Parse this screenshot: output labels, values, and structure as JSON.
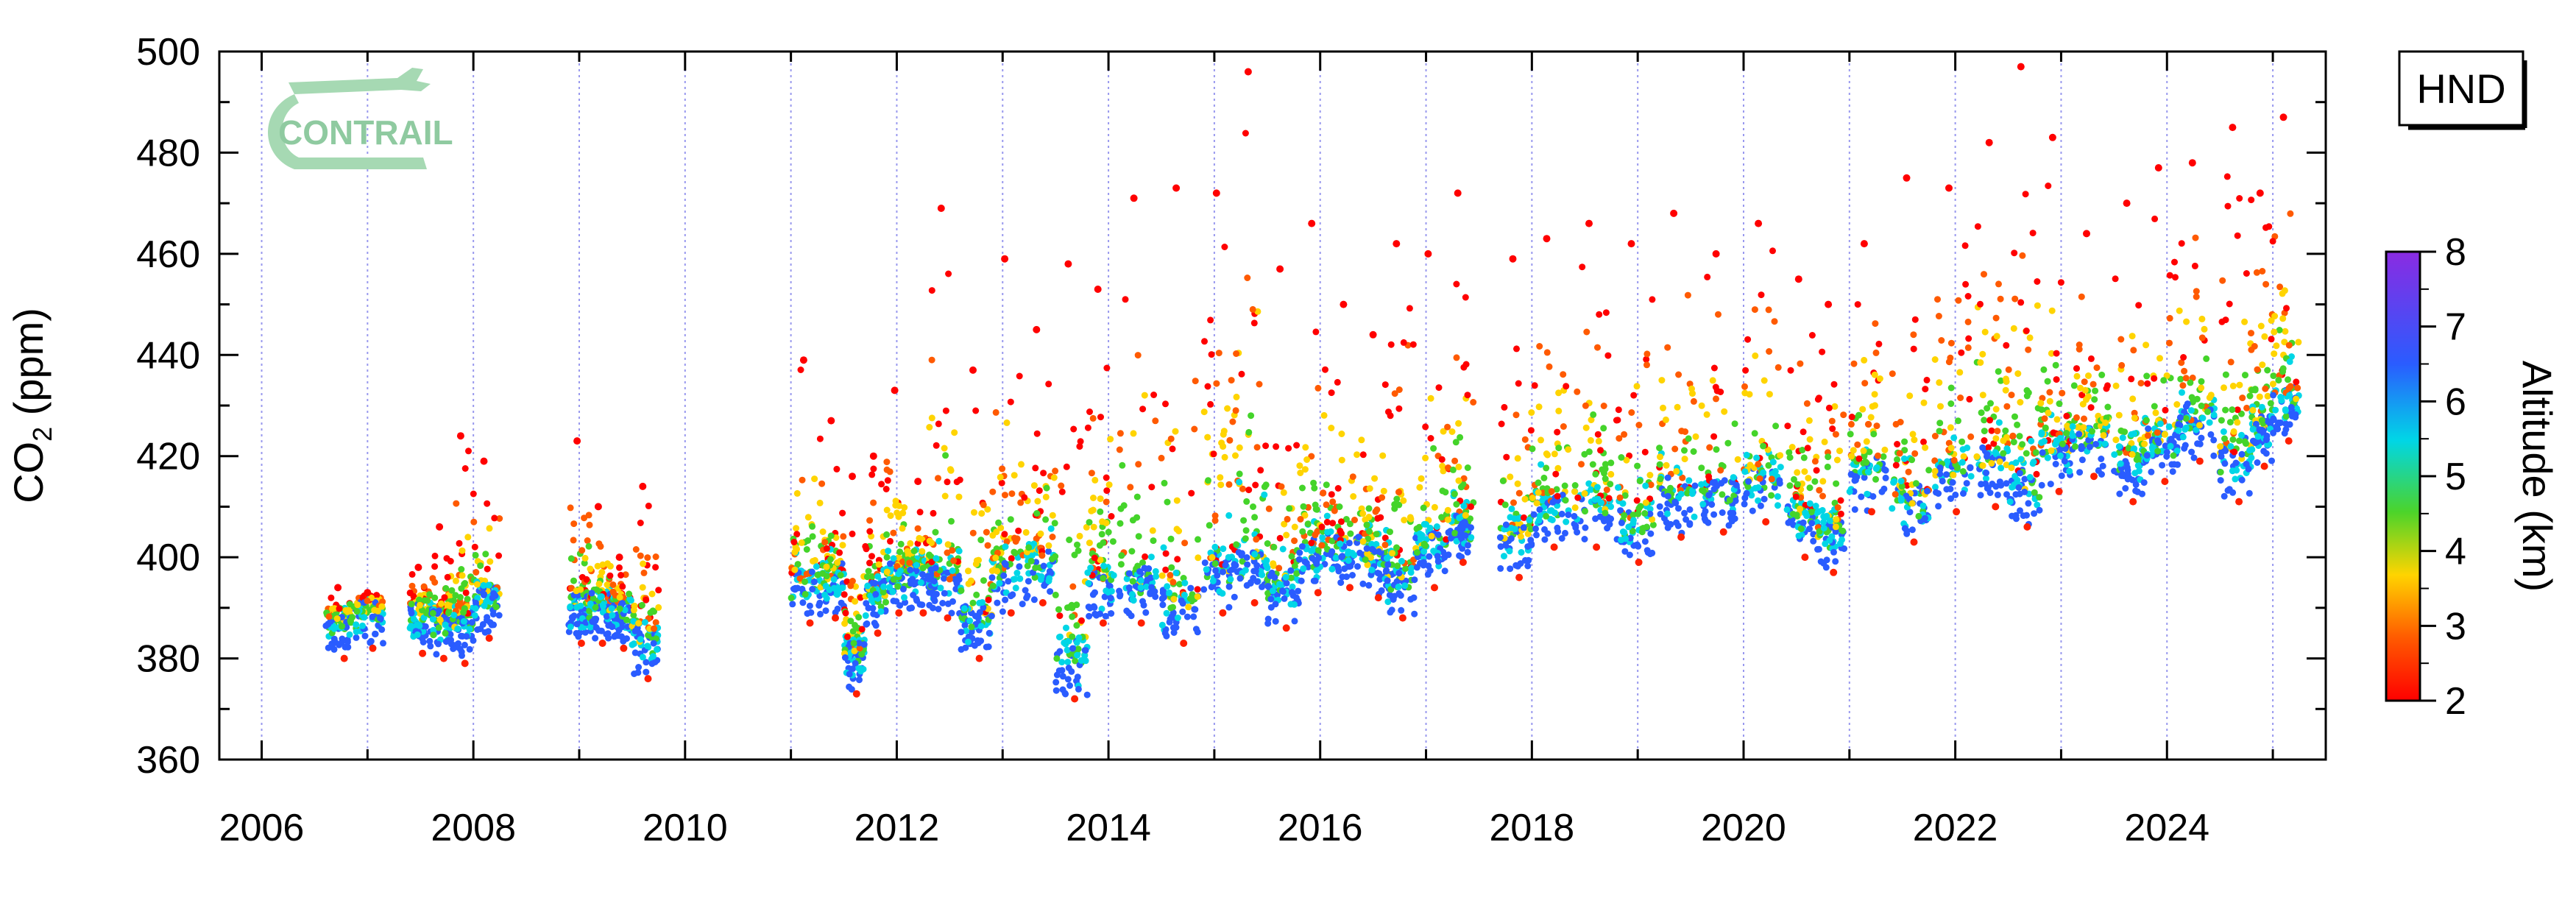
{
  "station_badge": "HND",
  "logo": {
    "text": "CONTRAIL",
    "color": "#a6d9b3"
  },
  "colorbar": {
    "label": "Altitude (km)",
    "ticks": [
      "8",
      "7",
      "6",
      "5",
      "4",
      "3",
      "2"
    ],
    "range": [
      2,
      8
    ]
  },
  "chart_data": {
    "type": "scatter",
    "ylabel_main": "CO",
    "ylabel_sub": "2",
    "ylabel_unit": " (ppm)",
    "ylim": [
      360,
      500
    ],
    "xlim": [
      2005.6,
      2025.5
    ],
    "yticks": [
      "360",
      "380",
      "400",
      "420",
      "440",
      "460",
      "480",
      "500"
    ],
    "xticks": [
      "2006",
      "2008",
      "2010",
      "2012",
      "2014",
      "2016",
      "2018",
      "2020",
      "2022",
      "2024"
    ],
    "grid": "vertical dotted lines at each year",
    "color_encoding": "altitude in km (2 = red, 8 = violet)",
    "series": [
      {
        "x": [
          2006.6,
          2006.9
        ],
        "low": [
          380,
          382
        ],
        "high": [
          394,
          393
        ]
      },
      {
        "x": [
          2007.4,
          2007.6,
          2007.8,
          2008.0
        ],
        "low": [
          381,
          380,
          379,
          384
        ],
        "high": [
          398,
          406,
          424,
          419
        ]
      },
      {
        "x": [
          2008.9,
          2009.1,
          2009.3,
          2009.5
        ],
        "low": [
          383,
          383,
          382,
          376
        ],
        "high": [
          423,
          410,
          400,
          414
        ]
      },
      {
        "x": [
          2011.0,
          2011.3,
          2011.5,
          2011.7,
          2011.9,
          2012.1
        ],
        "low": [
          387,
          388,
          373,
          385,
          389,
          389
        ],
        "high": [
          439,
          427,
          416,
          420,
          433,
          415
        ]
      },
      {
        "x": [
          2012.3,
          2012.6,
          2012.9,
          2013.2,
          2013.5,
          2013.8
        ],
        "low": [
          388,
          380,
          389,
          391,
          372,
          387
        ],
        "high": [
          469,
          437,
          459,
          445,
          458,
          453
        ]
      },
      {
        "x": [
          2014.1,
          2014.5,
          2014.9,
          2015.2,
          2015.5,
          2015.8,
          2016.1,
          2016.4
        ],
        "low": [
          387,
          383,
          389,
          391,
          386,
          393,
          394,
          392
        ],
        "high": [
          471,
          473,
          472,
          496,
          457,
          466,
          450,
          444
        ]
      },
      {
        "x": [
          2016.6,
          2016.9,
          2017.2
        ],
        "low": [
          388,
          394,
          399
        ],
        "high": [
          462,
          460,
          472
        ]
      },
      {
        "x": [
          2017.7,
          2018.0,
          2018.4,
          2018.8,
          2019.2,
          2019.6,
          2020.0,
          2020.4,
          2020.7
        ],
        "low": [
          396,
          402,
          402,
          399,
          404,
          405,
          407,
          400,
          397
        ],
        "high": [
          459,
          463,
          466,
          462,
          468,
          460,
          466,
          455,
          450
        ]
      },
      {
        "x": [
          2021.0,
          2021.4,
          2021.8,
          2022.2,
          2022.5,
          2022.8,
          2023.1,
          2023.5,
          2023.8,
          2024.1,
          2024.5,
          2024.8,
          2025.0
        ],
        "low": [
          409,
          403,
          409,
          410,
          406,
          413,
          416,
          411,
          415,
          419,
          411,
          418,
          423
        ],
        "high": [
          462,
          475,
          473,
          482,
          497,
          483,
          464,
          470,
          477,
          478,
          485,
          472,
          487
        ]
      }
    ]
  }
}
